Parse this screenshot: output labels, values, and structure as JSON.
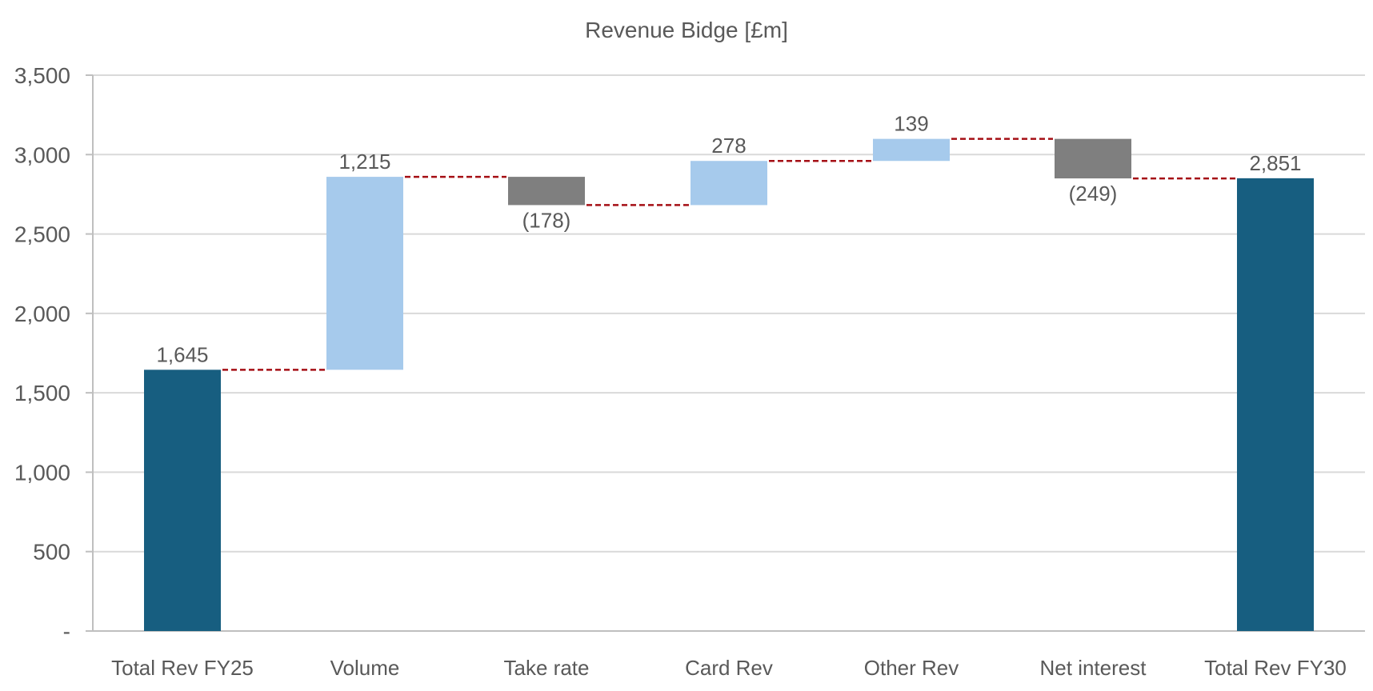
{
  "chart_data": {
    "type": "waterfall",
    "title": "Revenue Bidge [£m]",
    "xlabel": "",
    "ylabel": "",
    "ylim": [
      0,
      3500
    ],
    "yticks": [
      0,
      500,
      1000,
      1500,
      2000,
      2500,
      3000,
      3500
    ],
    "ytick_labels": [
      "-",
      "500",
      "1,000",
      "1,500",
      "2,000",
      "2,500",
      "3,000",
      "3,500"
    ],
    "grid": true,
    "categories": [
      "Total Rev FY25",
      "Volume",
      "Take rate",
      "Card Rev",
      "Other Rev",
      "Net interest",
      "Total Rev FY30"
    ],
    "steps": [
      {
        "category": "Total Rev FY25",
        "kind": "total",
        "value": 1645,
        "label": "1,645"
      },
      {
        "category": "Volume",
        "kind": "increase",
        "value": 1215,
        "label": "1,215"
      },
      {
        "category": "Take rate",
        "kind": "decrease",
        "value": -178,
        "label": "(178)"
      },
      {
        "category": "Card Rev",
        "kind": "increase",
        "value": 278,
        "label": "278"
      },
      {
        "category": "Other Rev",
        "kind": "increase",
        "value": 139,
        "label": "139"
      },
      {
        "category": "Net interest",
        "kind": "decrease",
        "value": -249,
        "label": "(249)"
      },
      {
        "category": "Total Rev FY30",
        "kind": "total",
        "value": 2851,
        "label": "2,851"
      }
    ],
    "colors": {
      "total": "#175E80",
      "increase": "#A6CAEC",
      "decrease": "#7F7F7F",
      "connector": "#A50F15",
      "grid": "#D9D9D9",
      "axis": "#BFBFBF",
      "text": "#595959"
    }
  }
}
